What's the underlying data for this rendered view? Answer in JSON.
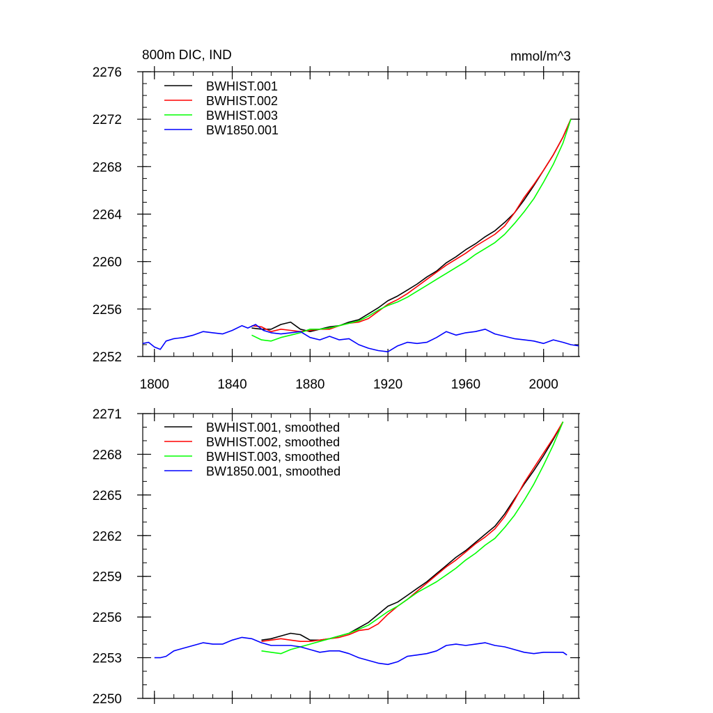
{
  "figure": {
    "title_left": "800m DIC, IND",
    "title_right": "mmol/m^3"
  },
  "colors": {
    "BWHIST.001": "#000000",
    "BWHIST.002": "#ff0000",
    "BWHIST.003": "#00ff00",
    "BW1850.001": "#0000ff"
  },
  "chart_data": [
    {
      "type": "line",
      "title": "800m DIC, IND",
      "units": "mmol/m^3",
      "xlim": [
        1794,
        2018
      ],
      "ylim": [
        2252,
        2276
      ],
      "xticks": [
        1800,
        1840,
        1880,
        1920,
        1960,
        2000
      ],
      "yticks": [
        2252,
        2256,
        2260,
        2264,
        2268,
        2272,
        2276
      ],
      "xminor": 10,
      "yminor": 1,
      "legend": "top-left",
      "grid": false,
      "series": [
        {
          "name": "BWHIST.001",
          "color": "#000000",
          "x": [
            1850,
            1855,
            1860,
            1865,
            1870,
            1875,
            1880,
            1885,
            1890,
            1895,
            1900,
            1905,
            1910,
            1915,
            1920,
            1925,
            1930,
            1935,
            1940,
            1945,
            1950,
            1955,
            1960,
            1965,
            1970,
            1975,
            1980,
            1985,
            1990,
            1995,
            2000,
            2005,
            2010,
            2014
          ],
          "y": [
            2254.4,
            2254.3,
            2254.3,
            2254.7,
            2254.9,
            2254.3,
            2254.1,
            2254.3,
            2254.5,
            2254.6,
            2254.9,
            2255.1,
            2255.6,
            2256.1,
            2256.7,
            2257.1,
            2257.6,
            2258.1,
            2258.7,
            2259.2,
            2259.9,
            2260.4,
            2261.0,
            2261.5,
            2262.1,
            2262.6,
            2263.3,
            2264.1,
            2265.2,
            2266.4,
            2267.7,
            2269.0,
            2270.5,
            2272.0
          ]
        },
        {
          "name": "BWHIST.002",
          "color": "#ff0000",
          "x": [
            1850,
            1855,
            1860,
            1865,
            1870,
            1875,
            1880,
            1885,
            1890,
            1895,
            1900,
            1905,
            1910,
            1915,
            1920,
            1925,
            1930,
            1935,
            1940,
            1945,
            1950,
            1955,
            1960,
            1965,
            1970,
            1975,
            1980,
            1985,
            1990,
            1995,
            2000,
            2005,
            2010,
            2014
          ],
          "y": [
            2254.6,
            2254.5,
            2254.1,
            2254.3,
            2254.2,
            2254.1,
            2254.2,
            2254.3,
            2254.3,
            2254.6,
            2254.8,
            2254.9,
            2255.2,
            2255.8,
            2256.4,
            2256.8,
            2257.3,
            2257.9,
            2258.5,
            2259.1,
            2259.7,
            2260.2,
            2260.7,
            2261.3,
            2261.8,
            2262.3,
            2263.0,
            2264.1,
            2265.4,
            2266.5,
            2267.7,
            2269.0,
            2270.5,
            2272.0
          ]
        },
        {
          "name": "BWHIST.003",
          "color": "#00ff00",
          "x": [
            1850,
            1855,
            1860,
            1865,
            1870,
            1875,
            1880,
            1885,
            1890,
            1895,
            1900,
            1905,
            1910,
            1915,
            1920,
            1925,
            1930,
            1935,
            1940,
            1945,
            1950,
            1955,
            1960,
            1965,
            1970,
            1975,
            1980,
            1985,
            1990,
            1995,
            2000,
            2005,
            2010,
            2014
          ],
          "y": [
            2253.8,
            2253.4,
            2253.3,
            2253.6,
            2253.8,
            2254.0,
            2254.3,
            2254.3,
            2254.4,
            2254.6,
            2254.8,
            2255.0,
            2255.4,
            2255.9,
            2256.3,
            2256.6,
            2257.0,
            2257.5,
            2258.0,
            2258.5,
            2259.0,
            2259.5,
            2260.0,
            2260.6,
            2261.1,
            2261.6,
            2262.3,
            2263.2,
            2264.2,
            2265.3,
            2266.7,
            2268.2,
            2270.0,
            2272.0
          ]
        },
        {
          "name": "BW1850.001",
          "color": "#0000ff",
          "x": [
            1794,
            1797,
            1800,
            1803,
            1806,
            1810,
            1815,
            1820,
            1825,
            1830,
            1835,
            1840,
            1845,
            1848,
            1852,
            1856,
            1860,
            1865,
            1870,
            1875,
            1880,
            1885,
            1890,
            1895,
            1900,
            1905,
            1910,
            1915,
            1920,
            1925,
            1930,
            1935,
            1940,
            1945,
            1950,
            1955,
            1960,
            1965,
            1970,
            1975,
            1980,
            1985,
            1990,
            1995,
            2000,
            2005,
            2010,
            2014,
            2018
          ],
          "y": [
            2253.1,
            2253.2,
            2252.8,
            2252.6,
            2253.3,
            2253.5,
            2253.6,
            2253.8,
            2254.1,
            2254.0,
            2253.9,
            2254.2,
            2254.6,
            2254.4,
            2254.7,
            2254.2,
            2254.0,
            2253.9,
            2254.0,
            2254.1,
            2253.6,
            2253.4,
            2253.7,
            2253.4,
            2253.5,
            2253.0,
            2252.7,
            2252.5,
            2252.4,
            2252.9,
            2253.2,
            2253.1,
            2253.2,
            2253.6,
            2254.1,
            2253.8,
            2254.0,
            2254.1,
            2254.3,
            2253.9,
            2253.7,
            2253.5,
            2253.4,
            2253.3,
            2253.1,
            2253.4,
            2253.2,
            2253.0,
            2252.9
          ]
        }
      ]
    },
    {
      "type": "line",
      "xlim": [
        1794,
        2018
      ],
      "ylim": [
        2250,
        2271
      ],
      "xticks": [
        1800,
        1840,
        1880,
        1920,
        1960,
        2000
      ],
      "yticks": [
        2250,
        2253,
        2256,
        2259,
        2262,
        2265,
        2268,
        2271
      ],
      "xminor": 10,
      "yminor": 1,
      "legend": "top-left",
      "grid": false,
      "series": [
        {
          "name": "BWHIST.001, smoothed",
          "color": "#000000",
          "x": [
            1855,
            1860,
            1865,
            1870,
            1875,
            1880,
            1885,
            1890,
            1895,
            1900,
            1905,
            1910,
            1915,
            1920,
            1925,
            1930,
            1935,
            1940,
            1945,
            1950,
            1955,
            1960,
            1965,
            1970,
            1975,
            1980,
            1985,
            1990,
            1995,
            2000,
            2005,
            2010
          ],
          "y": [
            2254.3,
            2254.4,
            2254.6,
            2254.8,
            2254.7,
            2254.3,
            2254.3,
            2254.4,
            2254.6,
            2254.8,
            2255.2,
            2255.6,
            2256.2,
            2256.8,
            2257.1,
            2257.6,
            2258.1,
            2258.6,
            2259.2,
            2259.8,
            2260.4,
            2260.9,
            2261.5,
            2262.1,
            2262.7,
            2263.6,
            2264.7,
            2265.8,
            2266.8,
            2267.9,
            2269.1,
            2270.4
          ]
        },
        {
          "name": "BWHIST.002, smoothed",
          "color": "#ff0000",
          "x": [
            1855,
            1860,
            1865,
            1870,
            1875,
            1880,
            1885,
            1890,
            1895,
            1900,
            1905,
            1910,
            1915,
            1920,
            1925,
            1930,
            1935,
            1940,
            1945,
            1950,
            1955,
            1960,
            1965,
            1970,
            1975,
            1980,
            1985,
            1990,
            1995,
            2000,
            2005,
            2010
          ],
          "y": [
            2254.2,
            2254.3,
            2254.4,
            2254.3,
            2254.2,
            2254.2,
            2254.3,
            2254.4,
            2254.5,
            2254.7,
            2255.0,
            2255.1,
            2255.5,
            2256.2,
            2256.8,
            2257.3,
            2257.9,
            2258.5,
            2259.1,
            2259.7,
            2260.2,
            2260.8,
            2261.4,
            2261.9,
            2262.5,
            2263.4,
            2264.6,
            2265.9,
            2267.0,
            2268.1,
            2269.2,
            2270.4
          ]
        },
        {
          "name": "BWHIST.003, smoothed",
          "color": "#00ff00",
          "x": [
            1855,
            1860,
            1865,
            1870,
            1875,
            1880,
            1885,
            1890,
            1895,
            1900,
            1905,
            1910,
            1915,
            1920,
            1925,
            1930,
            1935,
            1940,
            1945,
            1950,
            1955,
            1960,
            1965,
            1970,
            1975,
            1980,
            1985,
            1990,
            1995,
            2000,
            2005,
            2010
          ],
          "y": [
            2253.5,
            2253.4,
            2253.3,
            2253.6,
            2253.8,
            2254.0,
            2254.2,
            2254.4,
            2254.6,
            2254.8,
            2255.1,
            2255.4,
            2255.9,
            2256.4,
            2256.8,
            2257.3,
            2257.8,
            2258.2,
            2258.6,
            2259.1,
            2259.6,
            2260.2,
            2260.7,
            2261.3,
            2261.8,
            2262.6,
            2263.5,
            2264.6,
            2265.8,
            2267.2,
            2268.7,
            2270.4
          ]
        },
        {
          "name": "BW1850.001, smoothed",
          "color": "#0000ff",
          "x": [
            1800,
            1803,
            1806,
            1810,
            1815,
            1820,
            1825,
            1830,
            1835,
            1840,
            1845,
            1850,
            1855,
            1860,
            1865,
            1870,
            1875,
            1880,
            1885,
            1890,
            1895,
            1900,
            1905,
            1910,
            1915,
            1920,
            1925,
            1930,
            1935,
            1940,
            1945,
            1950,
            1955,
            1960,
            1965,
            1970,
            1975,
            1980,
            1985,
            1990,
            1995,
            2000,
            2005,
            2010,
            2012
          ],
          "y": [
            2253.0,
            2253.0,
            2253.1,
            2253.5,
            2253.7,
            2253.9,
            2254.1,
            2254.0,
            2254.0,
            2254.3,
            2254.5,
            2254.4,
            2254.1,
            2253.9,
            2253.9,
            2253.9,
            2253.8,
            2253.6,
            2253.4,
            2253.5,
            2253.5,
            2253.3,
            2253.0,
            2252.8,
            2252.6,
            2252.5,
            2252.7,
            2253.1,
            2253.2,
            2253.3,
            2253.5,
            2253.9,
            2254.0,
            2253.9,
            2254.0,
            2254.1,
            2253.9,
            2253.8,
            2253.6,
            2253.4,
            2253.3,
            2253.4,
            2253.4,
            2253.4,
            2253.2
          ]
        }
      ]
    }
  ]
}
